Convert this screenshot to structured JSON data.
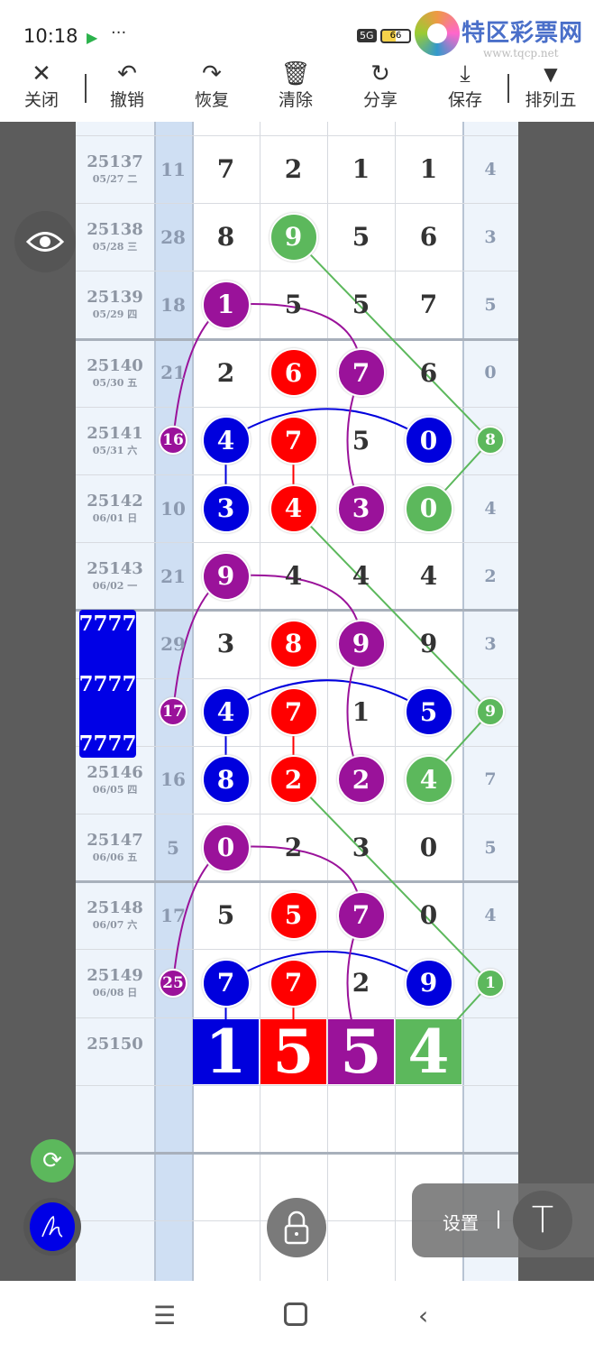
{
  "status_bar": {
    "time": "10:18",
    "battery": "66",
    "network": "5G"
  },
  "watermark": {
    "name": "特区彩票网",
    "url": "www.tqcp.net"
  },
  "toolbar": {
    "items": [
      {
        "label": "关闭",
        "icon": "close-icon"
      },
      {
        "label": "撤销",
        "icon": "undo-icon"
      },
      {
        "label": "恢复",
        "icon": "redo-icon"
      },
      {
        "label": "清除",
        "icon": "trash-icon"
      },
      {
        "label": "分享",
        "icon": "share-icon"
      },
      {
        "label": "保存",
        "icon": "download-icon"
      },
      {
        "label": "排列五",
        "icon": "caret-down-icon"
      }
    ]
  },
  "colors": {
    "blue": "#0000dd",
    "red": "#ff0000",
    "purple": "#9a129a",
    "green": "#5cb85c",
    "sum_column": "#cfdff3"
  },
  "rows": [
    {
      "issue": "25137",
      "date": "05/27 二",
      "sum": "11",
      "digits": [
        "7",
        "2",
        "1",
        "1"
      ],
      "last": "4"
    },
    {
      "issue": "25138",
      "date": "05/28 三",
      "sum": "28",
      "digits": [
        "8",
        "9",
        "5",
        "6"
      ],
      "last": "3"
    },
    {
      "issue": "25139",
      "date": "05/29 四",
      "sum": "18",
      "digits": [
        "1",
        "5",
        "5",
        "7"
      ],
      "last": "5"
    },
    {
      "issue": "25140",
      "date": "05/30 五",
      "sum": "21",
      "digits": [
        "2",
        "6",
        "7",
        "6"
      ],
      "last": "0"
    },
    {
      "issue": "25141",
      "date": "05/31 六",
      "sum": "16",
      "digits": [
        "4",
        "7",
        "5",
        "0"
      ],
      "last": "8"
    },
    {
      "issue": "25142",
      "date": "06/01 日",
      "sum": "10",
      "digits": [
        "3",
        "4",
        "3",
        "0"
      ],
      "last": "4"
    },
    {
      "issue": "25143",
      "date": "06/02 一",
      "sum": "21",
      "digits": [
        "9",
        "4",
        "4",
        "4"
      ],
      "last": "2"
    },
    {
      "issue": "",
      "date": "",
      "sum": "29",
      "digits": [
        "3",
        "8",
        "9",
        "9"
      ],
      "last": "3"
    },
    {
      "issue": "",
      "date": "",
      "sum": "17",
      "digits": [
        "4",
        "7",
        "1",
        "5"
      ],
      "last": "9"
    },
    {
      "issue": "25146",
      "date": "06/05 四",
      "sum": "16",
      "digits": [
        "8",
        "2",
        "2",
        "4"
      ],
      "last": "7"
    },
    {
      "issue": "25147",
      "date": "06/06 五",
      "sum": "5",
      "digits": [
        "0",
        "2",
        "3",
        "0"
      ],
      "last": "5"
    },
    {
      "issue": "25148",
      "date": "06/07 六",
      "sum": "17",
      "digits": [
        "5",
        "5",
        "7",
        "0"
      ],
      "last": "4"
    },
    {
      "issue": "25149",
      "date": "06/08 日",
      "sum": "25",
      "digits": [
        "7",
        "7",
        "2",
        "9"
      ],
      "last": "1"
    }
  ],
  "marks": [
    {
      "row": 1,
      "col": "d2",
      "color": "green"
    },
    {
      "row": 2,
      "col": "d1",
      "color": "purple"
    },
    {
      "row": 3,
      "col": "d2",
      "color": "red"
    },
    {
      "row": 3,
      "col": "d3",
      "color": "purple"
    },
    {
      "row": 4,
      "col": "sum",
      "color": "purple"
    },
    {
      "row": 4,
      "col": "d1",
      "color": "blue"
    },
    {
      "row": 4,
      "col": "d2",
      "color": "red"
    },
    {
      "row": 4,
      "col": "d4",
      "color": "blue"
    },
    {
      "row": 4,
      "col": "last",
      "color": "green"
    },
    {
      "row": 5,
      "col": "d1",
      "color": "blue"
    },
    {
      "row": 5,
      "col": "d2",
      "color": "red"
    },
    {
      "row": 5,
      "col": "d3",
      "color": "purple"
    },
    {
      "row": 5,
      "col": "d4",
      "color": "green"
    },
    {
      "row": 6,
      "col": "d1",
      "color": "purple"
    },
    {
      "row": 7,
      "col": "d2",
      "color": "red"
    },
    {
      "row": 7,
      "col": "d3",
      "color": "purple"
    },
    {
      "row": 8,
      "col": "sum",
      "color": "purple"
    },
    {
      "row": 8,
      "col": "d1",
      "color": "blue"
    },
    {
      "row": 8,
      "col": "d2",
      "color": "red"
    },
    {
      "row": 8,
      "col": "d4",
      "color": "blue"
    },
    {
      "row": 8,
      "col": "last",
      "color": "green"
    },
    {
      "row": 9,
      "col": "d1",
      "color": "blue"
    },
    {
      "row": 9,
      "col": "d2",
      "color": "red"
    },
    {
      "row": 9,
      "col": "d3",
      "color": "purple"
    },
    {
      "row": 9,
      "col": "d4",
      "color": "green"
    },
    {
      "row": 10,
      "col": "d1",
      "color": "purple"
    },
    {
      "row": 11,
      "col": "d2",
      "color": "red"
    },
    {
      "row": 11,
      "col": "d3",
      "color": "purple"
    },
    {
      "row": 12,
      "col": "sum",
      "color": "purple"
    },
    {
      "row": 12,
      "col": "d1",
      "color": "blue"
    },
    {
      "row": 12,
      "col": "d2",
      "color": "red"
    },
    {
      "row": 12,
      "col": "d4",
      "color": "blue"
    },
    {
      "row": 12,
      "col": "last",
      "color": "green"
    }
  ],
  "connections": [
    {
      "from": [
        1,
        "d2"
      ],
      "to": [
        4,
        "last"
      ],
      "color": "green"
    },
    {
      "from": [
        2,
        "d1"
      ],
      "to": [
        3,
        "d3"
      ],
      "color": "purple",
      "arc": true
    },
    {
      "from": [
        2,
        "d1"
      ],
      "to": [
        4,
        "sum"
      ],
      "color": "purple",
      "arc": true
    },
    {
      "from": [
        4,
        "d1"
      ],
      "to": [
        4,
        "d4"
      ],
      "color": "blue",
      "arc": true
    },
    {
      "from": [
        4,
        "d1"
      ],
      "to": [
        5,
        "d1"
      ],
      "color": "blue"
    },
    {
      "from": [
        4,
        "d2"
      ],
      "to": [
        5,
        "d2"
      ],
      "color": "red"
    },
    {
      "from": [
        3,
        "d3"
      ],
      "to": [
        5,
        "d3"
      ],
      "color": "purple",
      "arc": true
    },
    {
      "from": [
        4,
        "last"
      ],
      "to": [
        5,
        "d4"
      ],
      "color": "green"
    },
    {
      "from": [
        5,
        "d2"
      ],
      "to": [
        8,
        "last"
      ],
      "color": "green"
    },
    {
      "from": [
        6,
        "d1"
      ],
      "to": [
        7,
        "d3"
      ],
      "color": "purple",
      "arc": true
    },
    {
      "from": [
        6,
        "d1"
      ],
      "to": [
        8,
        "sum"
      ],
      "color": "purple",
      "arc": true
    },
    {
      "from": [
        8,
        "d1"
      ],
      "to": [
        8,
        "d4"
      ],
      "color": "blue",
      "arc": true
    },
    {
      "from": [
        8,
        "d1"
      ],
      "to": [
        9,
        "d1"
      ],
      "color": "blue"
    },
    {
      "from": [
        8,
        "d2"
      ],
      "to": [
        9,
        "d2"
      ],
      "color": "red"
    },
    {
      "from": [
        7,
        "d3"
      ],
      "to": [
        9,
        "d3"
      ],
      "color": "purple",
      "arc": true
    },
    {
      "from": [
        8,
        "last"
      ],
      "to": [
        9,
        "d4"
      ],
      "color": "green"
    },
    {
      "from": [
        9,
        "d2"
      ],
      "to": [
        12,
        "last"
      ],
      "color": "green"
    },
    {
      "from": [
        10,
        "d1"
      ],
      "to": [
        11,
        "d3"
      ],
      "color": "purple",
      "arc": true
    },
    {
      "from": [
        10,
        "d1"
      ],
      "to": [
        12,
        "sum"
      ],
      "color": "purple",
      "arc": true
    },
    {
      "from": [
        12,
        "d1"
      ],
      "to": [
        12,
        "d4"
      ],
      "color": "blue",
      "arc": true
    },
    {
      "from": [
        12,
        "d1"
      ],
      "to": [
        13,
        "d1"
      ],
      "color": "blue"
    },
    {
      "from": [
        12,
        "d2"
      ],
      "to": [
        13,
        "d2"
      ],
      "color": "red"
    },
    {
      "from": [
        11,
        "d3"
      ],
      "to": [
        13,
        "d3"
      ],
      "color": "purple",
      "arc": true
    },
    {
      "from": [
        12,
        "last"
      ],
      "to": [
        13,
        "d4"
      ],
      "color": "green"
    }
  ],
  "next_issue": {
    "issue": "25150",
    "digits": [
      "1",
      "5",
      "5",
      "4"
    ],
    "colors": [
      "blue",
      "red",
      "purple",
      "green"
    ]
  },
  "overlay_box": {
    "lines": [
      "7777",
      "7777",
      "7777"
    ]
  },
  "controls": {
    "settings_label": "设置",
    "text_tool": "T"
  }
}
